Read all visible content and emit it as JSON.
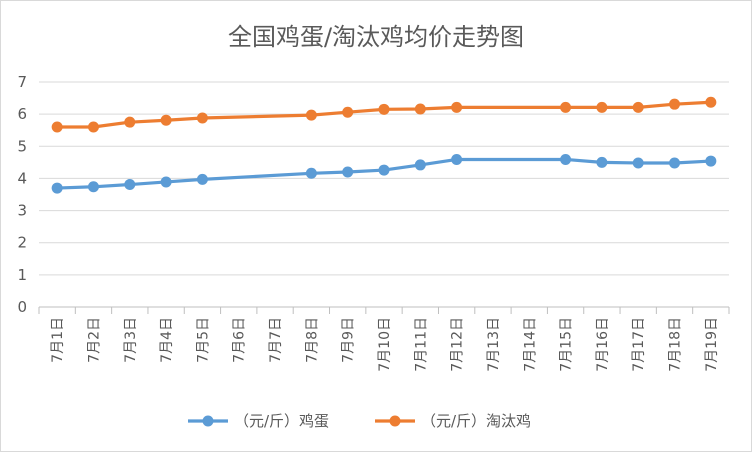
{
  "chart_data": {
    "type": "line",
    "title": "全国鸡蛋/淘汰鸡均价走势图",
    "xlabel": "",
    "ylabel": "",
    "categories": [
      "7月1日",
      "7月2日",
      "7月3日",
      "7月4日",
      "7月5日",
      "7月6日",
      "7月7日",
      "7月8日",
      "7月9日",
      "7月10日",
      "7月11日",
      "7月12日",
      "7月13日",
      "7月14日",
      "7月15日",
      "7月16日",
      "7月17日",
      "7月18日",
      "7月19日"
    ],
    "ylim": [
      0,
      7
    ],
    "yticks": [
      "0",
      "1",
      "2",
      "3",
      "4",
      "5",
      "6",
      "7"
    ],
    "grid": true,
    "legend_position": "bottom",
    "series": [
      {
        "name": "（元/斤）鸡蛋",
        "color": "#5B9BD5",
        "values": [
          3.7,
          3.74,
          3.81,
          3.89,
          3.97,
          null,
          null,
          4.16,
          4.2,
          4.26,
          4.42,
          4.59,
          null,
          null,
          4.59,
          4.5,
          4.48,
          4.48,
          4.54
        ]
      },
      {
        "name": "（元/斤）淘汰鸡",
        "color": "#ED7D31",
        "values": [
          5.6,
          5.6,
          5.75,
          5.81,
          5.88,
          null,
          null,
          5.97,
          6.06,
          6.15,
          6.16,
          6.21,
          null,
          null,
          6.21,
          6.21,
          6.21,
          6.31,
          6.37
        ]
      }
    ]
  }
}
